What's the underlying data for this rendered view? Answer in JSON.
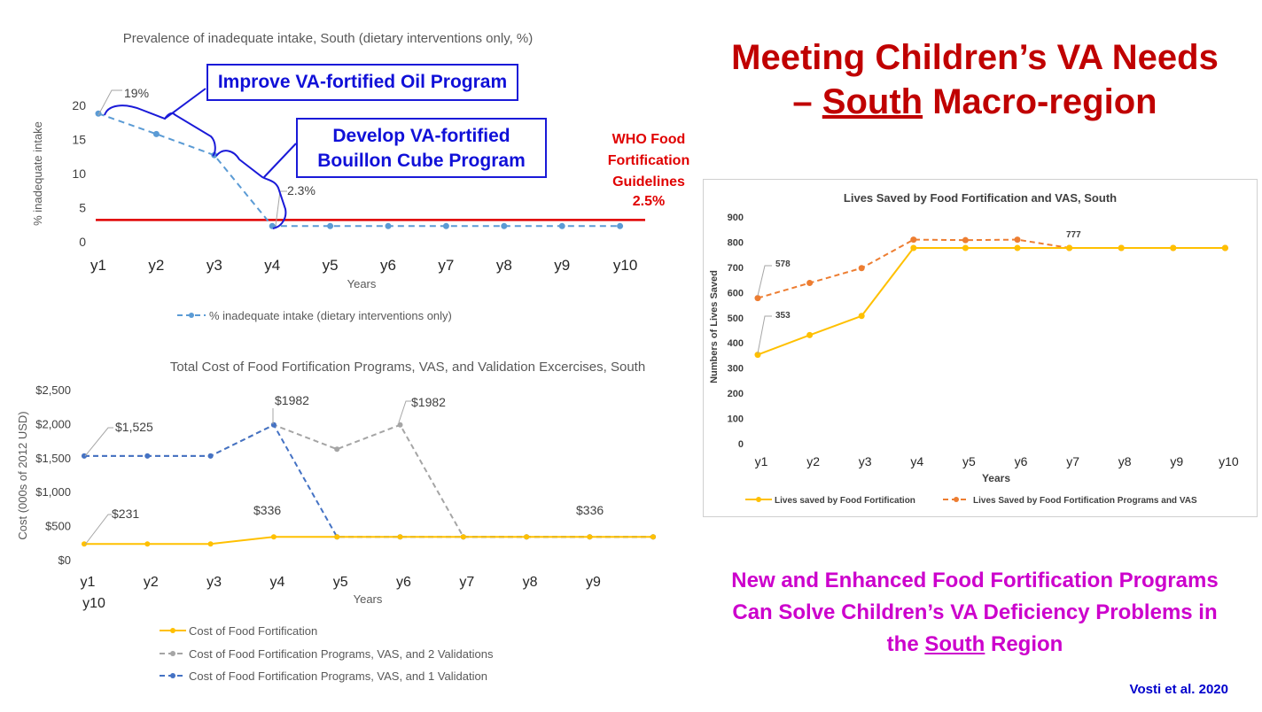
{
  "slide": {
    "title_line1": "Meeting Children’s VA Needs",
    "title_dash": "– ",
    "title_region": "South",
    "title_line2_rest": " Macro-region",
    "who_label": "WHO Food Fortification Guidelines",
    "who_value": "2.5%",
    "callout_oil": "Improve VA-fortified Oil Program",
    "callout_cube": "Develop VA-fortified Bouillon Cube Program",
    "conclusion_part1": "New and Enhanced Food Fortification Programs Can Solve Children’s VA Deficiency Problems in the ",
    "conclusion_region": "South",
    "conclusion_part2": " Region",
    "citation": "Vosti et al. 2020",
    "colors": {
      "title": "#c00000",
      "who_line": "#e00000",
      "callout": "#1010d8",
      "conclusion": "#cc00cc",
      "citation": "#0000cc"
    }
  },
  "chart_data": [
    {
      "type": "line",
      "title": "Prevalence of inadequate intake, South (dietary interventions only, %)",
      "xlabel": "Years",
      "ylabel": "% inadequate intake",
      "categories": [
        "y1",
        "y2",
        "y3",
        "y4",
        "y5",
        "y6",
        "y7",
        "y8",
        "y9",
        "y10"
      ],
      "ylim": [
        0,
        20
      ],
      "yticks": [
        0,
        5,
        10,
        15,
        20
      ],
      "series": [
        {
          "name": "% inadequate intake (dietary interventions only)",
          "color": "#5b9bd5",
          "dashed": true,
          "values": [
            18.8,
            15.8,
            12.7,
            2.3,
            2.3,
            2.3,
            2.3,
            2.3,
            2.3,
            2.3
          ]
        }
      ],
      "reference_line": {
        "value": 3.2,
        "color": "#e00000"
      },
      "annotations": [
        {
          "index": 0,
          "text": "19%"
        },
        {
          "index": 3,
          "text": "2.3%"
        }
      ],
      "legend": "bottom",
      "grid": false
    },
    {
      "type": "line",
      "title": "Total Cost of Food Fortification Programs, VAS, and Validation Excercises, South",
      "xlabel": "Years",
      "ylabel": "Cost (000s of 2012 USD)",
      "categories": [
        "y1",
        "y2",
        "y3",
        "y4",
        "y5",
        "y6",
        "y7",
        "y8",
        "y9",
        "y10"
      ],
      "ylim": [
        0,
        2500
      ],
      "yticks": [
        "$0",
        "$500",
        "$1,000",
        "$1,500",
        "$2,000",
        "$2,500"
      ],
      "series": [
        {
          "name": "Cost of Food Fortification",
          "color": "#ffc000",
          "dashed": false,
          "values": [
            231,
            231,
            231,
            336,
            336,
            336,
            336,
            336,
            336,
            336
          ]
        },
        {
          "name": "Cost of Food Fortification Programs, VAS, and 2 Validations",
          "color": "#a5a5a5",
          "dashed": true,
          "values": [
            1525,
            1525,
            1525,
            1982,
            1625,
            1982,
            336,
            336,
            336,
            336
          ]
        },
        {
          "name": "Cost of Food Fortification Programs, VAS, and 1 Validation",
          "color": "#4472c4",
          "dashed": true,
          "values": [
            1525,
            1525,
            1525,
            1982,
            336,
            336,
            336,
            336,
            336,
            336
          ]
        }
      ],
      "annotations": [
        {
          "text": "$1,525"
        },
        {
          "text": "$1982"
        },
        {
          "text": "$1982"
        },
        {
          "text": "$231"
        },
        {
          "text": "$336"
        },
        {
          "text": "$336"
        }
      ],
      "legend": "bottom",
      "grid": false
    },
    {
      "type": "line",
      "title": "Lives Saved by Food Fortification and VAS, South",
      "xlabel": "Years",
      "ylabel": "Numbers of Lives Saved",
      "categories": [
        "y1",
        "y2",
        "y3",
        "y4",
        "y5",
        "y6",
        "y7",
        "y8",
        "y9",
        "y10"
      ],
      "ylim": [
        0,
        900
      ],
      "yticks": [
        0,
        100,
        200,
        300,
        400,
        500,
        600,
        700,
        800,
        900
      ],
      "series": [
        {
          "name": "Lives saved by Food Fortification",
          "color": "#ffc000",
          "dashed": false,
          "values": [
            353,
            431,
            507,
            777,
            777,
            777,
            777,
            777,
            777,
            777
          ]
        },
        {
          "name": "Lives Saved by Food Fortification Programs and VAS",
          "color": "#ed7d31",
          "dashed": true,
          "values": [
            578,
            638,
            697,
            810,
            808,
            810,
            777,
            777,
            777,
            777
          ]
        }
      ],
      "annotations": [
        {
          "text": "578"
        },
        {
          "text": "353"
        },
        {
          "text": "777"
        }
      ],
      "legend": "bottom",
      "grid": false
    }
  ]
}
